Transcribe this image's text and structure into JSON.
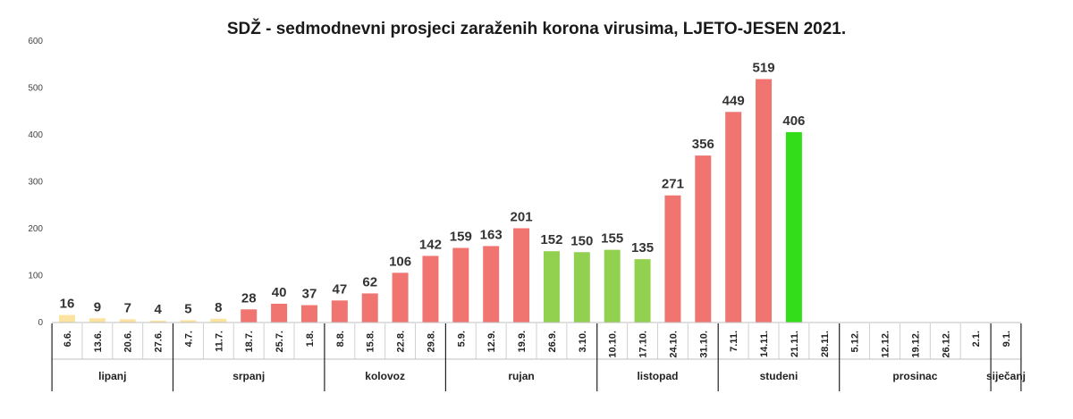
{
  "chart_data": {
    "type": "bar",
    "title": "SDŽ - sedmodnevni prosjeci zaraženih korona virusima, LJETO-JESEN 2021.",
    "ylim": [
      0,
      600
    ],
    "yticks": [
      0,
      100,
      200,
      300,
      400,
      500,
      600
    ],
    "grid": false,
    "categories": [
      "6.6.",
      "13.6.",
      "20.6.",
      "27.6.",
      "4.7.",
      "11.7.",
      "18.7.",
      "25.7.",
      "1.8.",
      "8.8.",
      "15.8.",
      "22.8.",
      "29.8.",
      "5.9.",
      "12.9.",
      "19.9.",
      "26.9.",
      "3.10.",
      "10.10.",
      "17.10.",
      "24.10.",
      "31.10.",
      "7.11.",
      "14.11.",
      "21.11.",
      "28.11.",
      "5.12.",
      "12.12.",
      "19.12.",
      "26.12.",
      "2.1.",
      "9.1."
    ],
    "values": [
      16,
      9,
      7,
      4,
      5,
      8,
      28,
      40,
      37,
      47,
      62,
      106,
      142,
      159,
      163,
      201,
      152,
      150,
      155,
      135,
      271,
      356,
      449,
      519,
      406,
      null,
      null,
      null,
      null,
      null,
      null,
      null
    ],
    "bar_colors": [
      "#fde3a0",
      "#fde3a0",
      "#fde3a0",
      "#fde3a0",
      "#fde3a0",
      "#fde3a0",
      "#f07470",
      "#f07470",
      "#f07470",
      "#f07470",
      "#f07470",
      "#f07470",
      "#f07470",
      "#f07470",
      "#f07470",
      "#f07470",
      "#92d050",
      "#92d050",
      "#92d050",
      "#92d050",
      "#f07470",
      "#f07470",
      "#f07470",
      "#f07470",
      "#33dd1a",
      null,
      null,
      null,
      null,
      null,
      null,
      null
    ],
    "months": [
      {
        "name": "lipanj",
        "start": 0,
        "end": 3
      },
      {
        "name": "srpanj",
        "start": 4,
        "end": 8
      },
      {
        "name": "kolovoz",
        "start": 9,
        "end": 12
      },
      {
        "name": "rujan",
        "start": 13,
        "end": 17
      },
      {
        "name": "listopad",
        "start": 18,
        "end": 21
      },
      {
        "name": "studeni",
        "start": 22,
        "end": 25
      },
      {
        "name": "prosinac",
        "start": 26,
        "end": 30
      },
      {
        "name": "siječanj",
        "start": 31,
        "end": 31
      }
    ]
  }
}
